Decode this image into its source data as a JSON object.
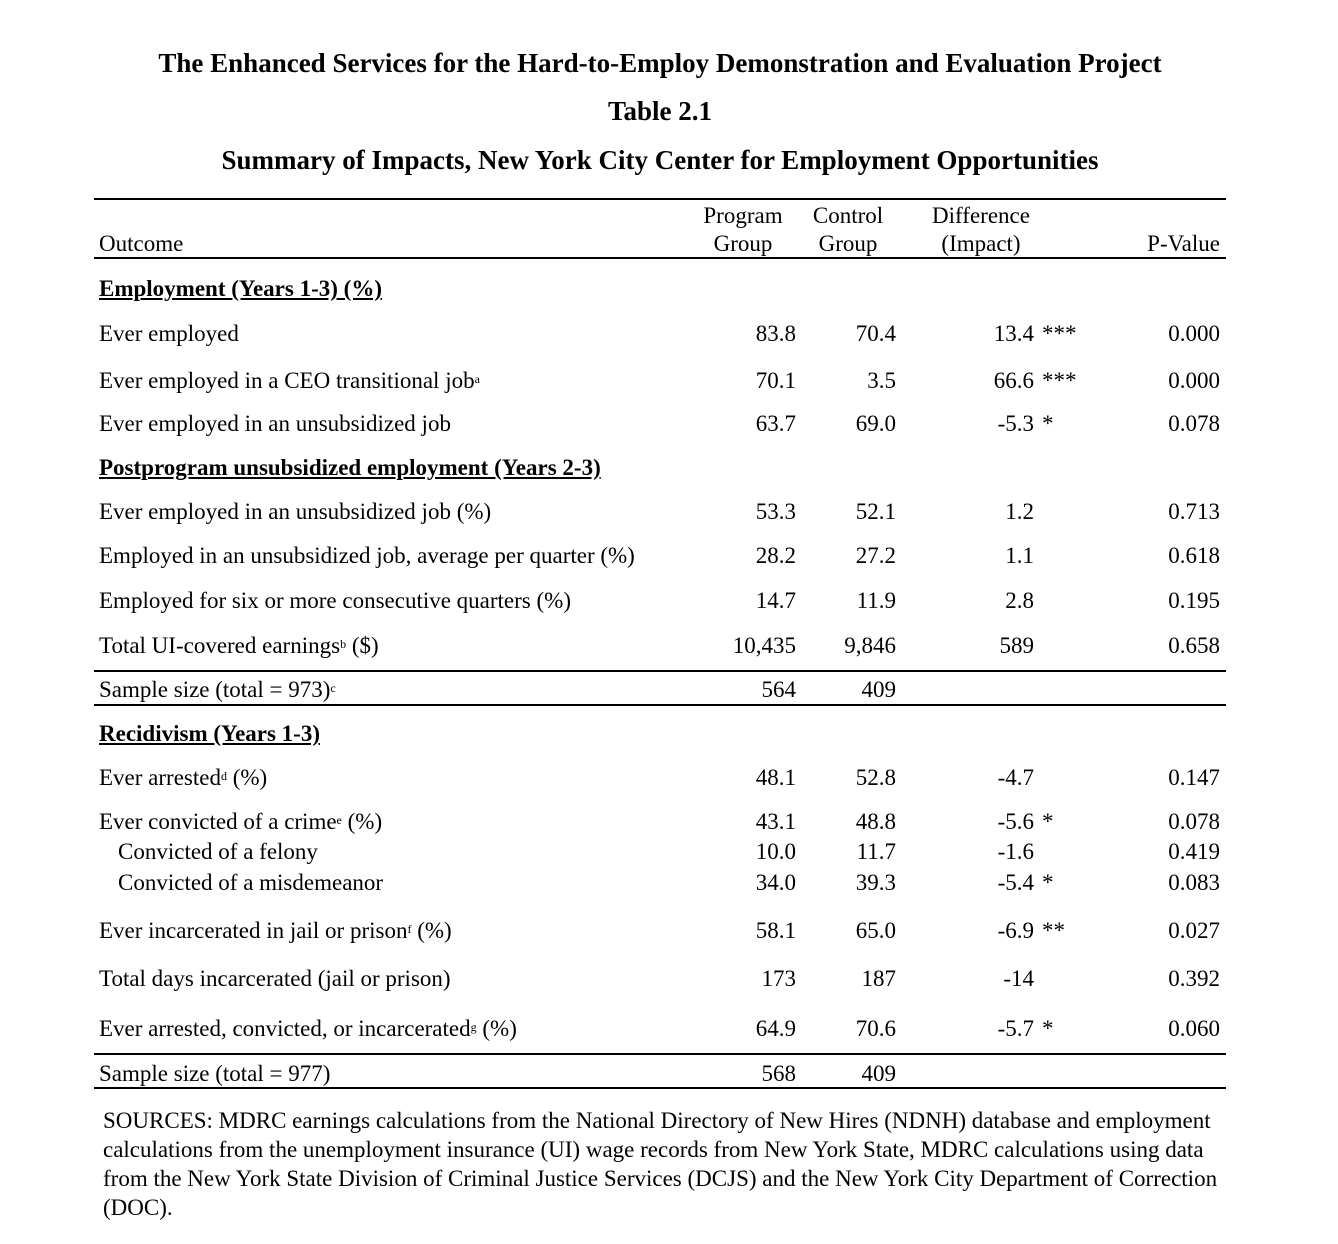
{
  "title": {
    "line1": "The Enhanced Services for the Hard-to-Employ Demonstration and Evaluation Project",
    "line2": "Table 2.1",
    "line3": "Summary of Impacts, New York City Center for Employment Opportunities"
  },
  "columns": {
    "outcome": "Outcome",
    "program_1": "Program",
    "program_2": "Group",
    "control_1": "Control",
    "control_2": "Group",
    "diff_1": "Difference",
    "diff_2": "(Impact)",
    "pvalue": "P-Value"
  },
  "sections": {
    "employment": "Employment (Years 1-3) (%)",
    "postprogram": "Postprogram unsubsidized employment  (Years 2-3)",
    "recidivism": "Recidivism (Years 1-3)"
  },
  "rows": [
    {
      "label": "Ever employed",
      "sup": "",
      "suffix": "",
      "program": "83.8",
      "control": "70.4",
      "diff": "13.4",
      "stars": "***",
      "p": "0.000"
    },
    {
      "label": "Ever employed in a CEO transitional job",
      "sup": "a",
      "suffix": "",
      "program": "70.1",
      "control": "3.5",
      "diff": "66.6",
      "stars": "***",
      "p": "0.000"
    },
    {
      "label": "Ever employed in an unsubsidized job",
      "sup": "",
      "suffix": "",
      "program": "63.7",
      "control": "69.0",
      "diff": "-5.3",
      "stars": "*",
      "p": "0.078"
    },
    {
      "label": "Ever employed in an unsubsidized job (%)",
      "sup": "",
      "suffix": "",
      "program": "53.3",
      "control": "52.1",
      "diff": "1.2",
      "stars": "",
      "p": "0.713"
    },
    {
      "label": "Employed in an unsubsidized job, average per quarter (%)",
      "sup": "",
      "suffix": "",
      "program": "28.2",
      "control": "27.2",
      "diff": "1.1",
      "stars": "",
      "p": "0.618"
    },
    {
      "label": "Employed for six or more consecutive quarters (%)",
      "sup": "",
      "suffix": "",
      "program": "14.7",
      "control": "11.9",
      "diff": "2.8",
      "stars": "",
      "p": "0.195"
    },
    {
      "label": "Total UI-covered earnings",
      "sup": "b",
      "suffix": " ($)",
      "program": "10,435",
      "control": "9,846",
      "diff": "589",
      "stars": "",
      "p": "0.658"
    },
    {
      "label": "Sample size (total = 973)",
      "sup": "c",
      "suffix": "",
      "program": "564",
      "control": "409",
      "diff": "",
      "stars": "",
      "p": ""
    },
    {
      "label": "Ever arrested",
      "sup": "d",
      "suffix": " (%)",
      "program": "48.1",
      "control": "52.8",
      "diff": "-4.7",
      "stars": "",
      "p": "0.147"
    },
    {
      "label": "Ever convicted of a crime",
      "sup": "e",
      "suffix": " (%)",
      "program": "43.1",
      "control": "48.8",
      "diff": "-5.6",
      "stars": "*",
      "p": "0.078"
    },
    {
      "label": "Convicted of a felony",
      "sup": "",
      "suffix": "",
      "program": "10.0",
      "control": "11.7",
      "diff": "-1.6",
      "stars": "",
      "p": "0.419"
    },
    {
      "label": "Convicted of a misdemeanor",
      "sup": "",
      "suffix": "",
      "program": "34.0",
      "control": "39.3",
      "diff": "-5.4",
      "stars": "*",
      "p": "0.083"
    },
    {
      "label": "Ever incarcerated in jail or prison",
      "sup": "f",
      "suffix": " (%)",
      "program": "58.1",
      "control": "65.0",
      "diff": "-6.9",
      "stars": "**",
      "p": "0.027"
    },
    {
      "label": "Total days incarcerated (jail or prison)",
      "sup": "",
      "suffix": "",
      "program": "173",
      "control": "187",
      "diff": "-14",
      "stars": "",
      "p": "0.392"
    },
    {
      "label": "Ever arrested, convicted, or incarcerated",
      "sup": "g",
      "suffix": " (%)",
      "program": "64.9",
      "control": "70.6",
      "diff": "-5.7",
      "stars": "*",
      "p": "0.060"
    },
    {
      "label": "Sample size (total = 977)",
      "sup": "",
      "suffix": "",
      "program": "568",
      "control": "409",
      "diff": "",
      "stars": "",
      "p": ""
    }
  ],
  "sources": "SOURCES: MDRC earnings calculations from the National Directory of New Hires (NDNH) database and employment calculations from the unemployment insurance (UI) wage records from New York State, MDRC calculations using data from the New York State Division of Criminal Justice Services (DCJS) and the New York City Department of Correction (DOC)."
}
